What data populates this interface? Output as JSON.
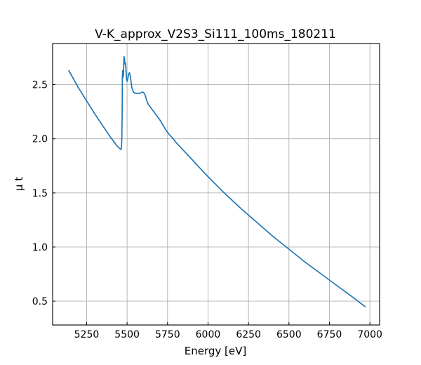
{
  "chart_data": {
    "type": "line",
    "title": "V-K_approx_V2S3_Si111_100ms_180211",
    "xlabel": "Energy [eV]",
    "ylabel": "μ t",
    "xlim": [
      5040,
      7060
    ],
    "ylim": [
      0.28,
      2.88
    ],
    "xticks": [
      5250,
      5500,
      5750,
      6000,
      6250,
      6500,
      6750,
      7000
    ],
    "xtick_labels": [
      "5250",
      "5500",
      "5750",
      "6000",
      "6250",
      "6500",
      "6750",
      "7000"
    ],
    "yticks": [
      0.5,
      1.0,
      1.5,
      2.0,
      2.5
    ],
    "ytick_labels": [
      "0.5",
      "1.0",
      "1.5",
      "2.0",
      "2.5"
    ],
    "grid": true,
    "ticks_direction": "in",
    "series": [
      {
        "color": "#1f77b4",
        "x": [
          5140,
          5200,
          5250,
          5300,
          5350,
          5400,
          5440,
          5455,
          5463,
          5466,
          5468,
          5470,
          5471,
          5473,
          5476,
          5478,
          5481,
          5484,
          5487,
          5490,
          5493,
          5496,
          5500,
          5505,
          5510,
          5515,
          5520,
          5525,
          5530,
          5540,
          5550,
          5560,
          5570,
          5580,
          5590,
          5600,
          5610,
          5620,
          5630,
          5645,
          5660,
          5680,
          5700,
          5720,
          5740,
          5760,
          5780,
          5800,
          5850,
          5900,
          5950,
          6000,
          6100,
          6200,
          6300,
          6400,
          6500,
          6600,
          6700,
          6800,
          6900,
          6970
        ],
        "y": [
          2.63,
          2.47,
          2.35,
          2.23,
          2.12,
          2.01,
          1.93,
          1.91,
          1.9,
          1.94,
          2.02,
          2.3,
          2.58,
          2.63,
          2.57,
          2.6,
          2.76,
          2.74,
          2.69,
          2.7,
          2.64,
          2.56,
          2.53,
          2.56,
          2.6,
          2.61,
          2.58,
          2.52,
          2.47,
          2.43,
          2.42,
          2.42,
          2.42,
          2.42,
          2.43,
          2.43,
          2.41,
          2.36,
          2.32,
          2.29,
          2.26,
          2.22,
          2.18,
          2.13,
          2.08,
          2.04,
          2.01,
          1.97,
          1.89,
          1.81,
          1.73,
          1.65,
          1.5,
          1.36,
          1.23,
          1.1,
          0.98,
          0.86,
          0.75,
          0.64,
          0.53,
          0.45
        ]
      }
    ]
  }
}
